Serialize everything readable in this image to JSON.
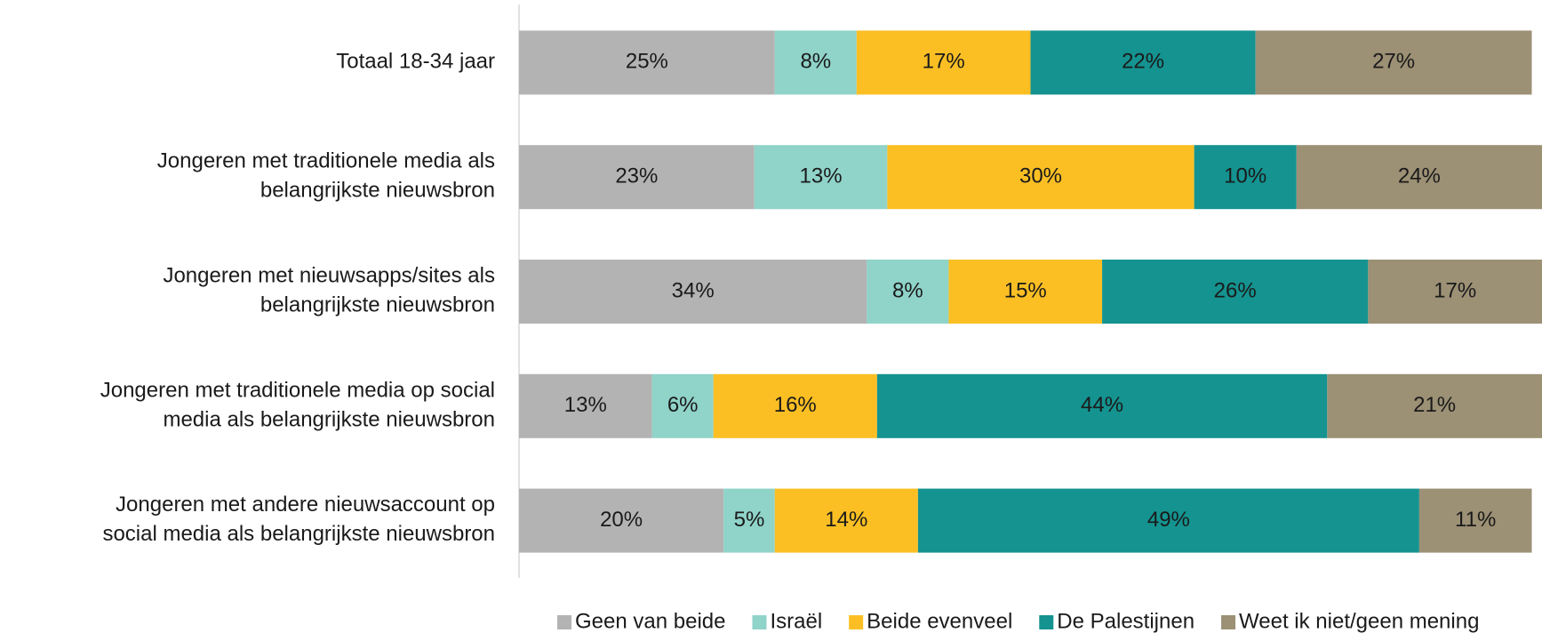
{
  "chart_data": {
    "type": "stacked_barh",
    "categories": [
      "Totaal 18-34 jaar",
      "Jongeren met traditionele media als\nbelangrijkste nieuwsbron",
      "Jongeren met nieuwsapps/sites als\nbelangrijkste nieuwsbron",
      "Jongeren met traditionele media op social\nmedia als belangrijkste nieuwsbron",
      "Jongeren met andere nieuwsaccount op\nsocial media als belangrijkste nieuwsbron"
    ],
    "series": [
      {
        "name": "Geen van beide",
        "color": "#b3b3b3",
        "label_color": "#ffffff",
        "values": [
          25,
          23,
          34,
          13,
          20
        ],
        "value_labels": [
          "25%",
          "23%",
          "34%",
          "13%",
          "20%"
        ]
      },
      {
        "name": "Israël",
        "color": "#8fd3c9",
        "label_color": "#1a1a1a",
        "values": [
          8,
          13,
          8,
          6,
          5
        ],
        "value_labels": [
          "8%",
          "13%",
          "8%",
          "6%",
          "5%"
        ]
      },
      {
        "name": "Beide evenveel",
        "color": "#fbbf24",
        "label_color": "#1a1a1a",
        "values": [
          17,
          30,
          15,
          16,
          14
        ],
        "value_labels": [
          "17%",
          "30%",
          "15%",
          "16%",
          "14%"
        ]
      },
      {
        "name": "De Palestijnen",
        "color": "#149390",
        "label_color": "#ffffff",
        "values": [
          22,
          10,
          26,
          44,
          49
        ],
        "value_labels": [
          "22%",
          "10%",
          "26%",
          "44%",
          "49%"
        ]
      },
      {
        "name": "Weet ik niet/geen mening",
        "color": "#9c9075",
        "label_color": "#ffffff",
        "values": [
          27,
          24,
          17,
          21,
          11
        ],
        "value_labels": [
          "27%",
          "24%",
          "17%",
          "21%",
          "11%"
        ]
      }
    ],
    "xlim": [
      0,
      100
    ],
    "legend": "bottom"
  }
}
